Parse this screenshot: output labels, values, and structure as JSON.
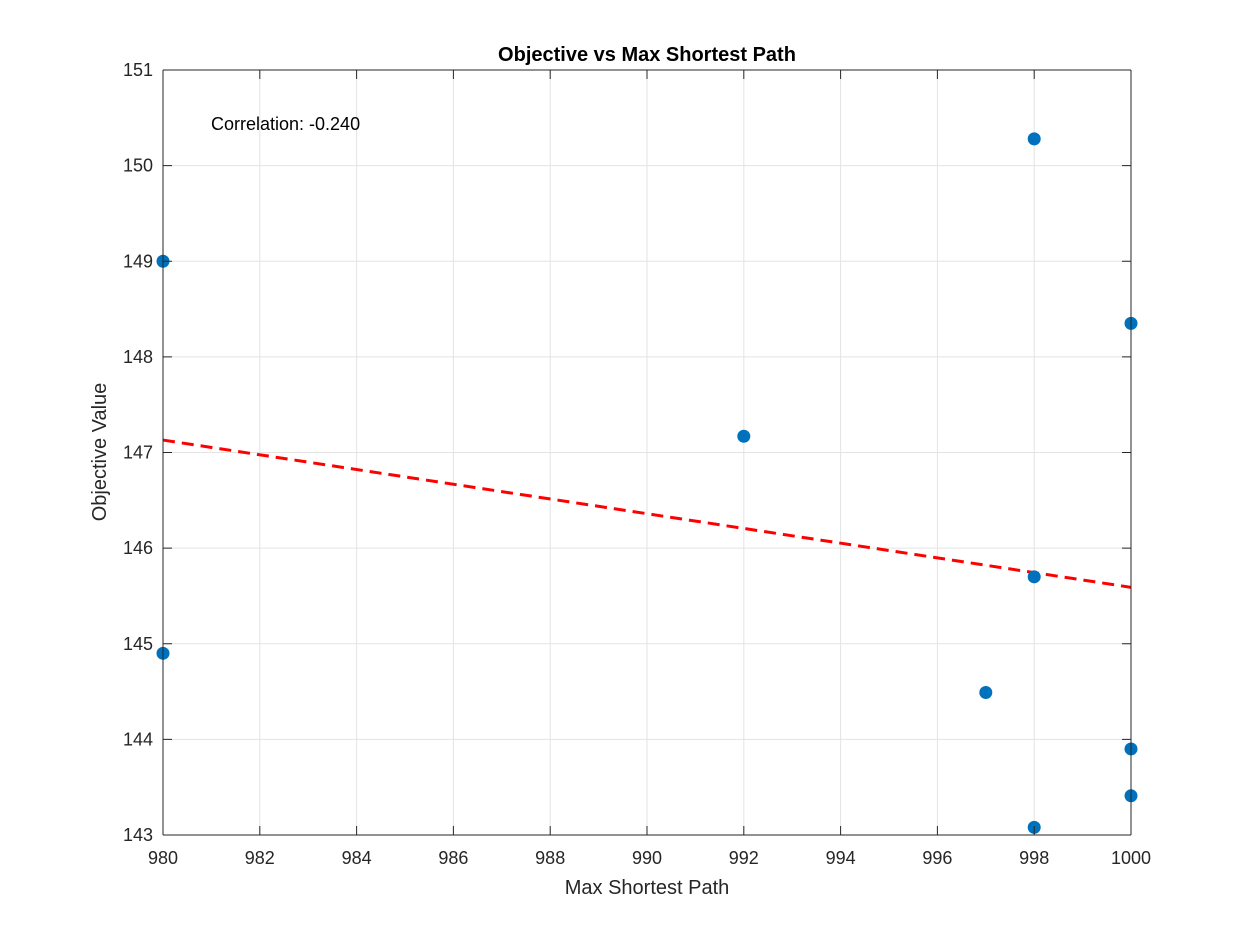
{
  "chart_data": {
    "type": "scatter",
    "title": "Objective vs Max Shortest Path",
    "xlabel": "Max Shortest Path",
    "ylabel": "Objective Value",
    "xlim": [
      980,
      1000
    ],
    "ylim": [
      143,
      151
    ],
    "x_ticks": [
      "980",
      "982",
      "984",
      "986",
      "988",
      "990",
      "992",
      "994",
      "996",
      "998",
      "1000"
    ],
    "y_ticks": [
      "143",
      "144",
      "145",
      "146",
      "147",
      "148",
      "149",
      "150",
      "151"
    ],
    "grid": true,
    "annotation": "Correlation: -0.240",
    "series": [
      {
        "type": "scatter",
        "color": "#0072BD",
        "points": [
          {
            "x": 980,
            "y": 149.0
          },
          {
            "x": 980,
            "y": 144.9
          },
          {
            "x": 992,
            "y": 147.17
          },
          {
            "x": 997,
            "y": 144.49
          },
          {
            "x": 998,
            "y": 150.28
          },
          {
            "x": 998,
            "y": 145.7
          },
          {
            "x": 998,
            "y": 143.08
          },
          {
            "x": 1000,
            "y": 148.35
          },
          {
            "x": 1000,
            "y": 143.9
          },
          {
            "x": 1000,
            "y": 143.41
          }
        ]
      },
      {
        "type": "line",
        "style": "dashed",
        "color": "#FF0000",
        "points": [
          {
            "x": 980,
            "y": 147.13
          },
          {
            "x": 1000,
            "y": 145.59
          }
        ]
      }
    ]
  }
}
